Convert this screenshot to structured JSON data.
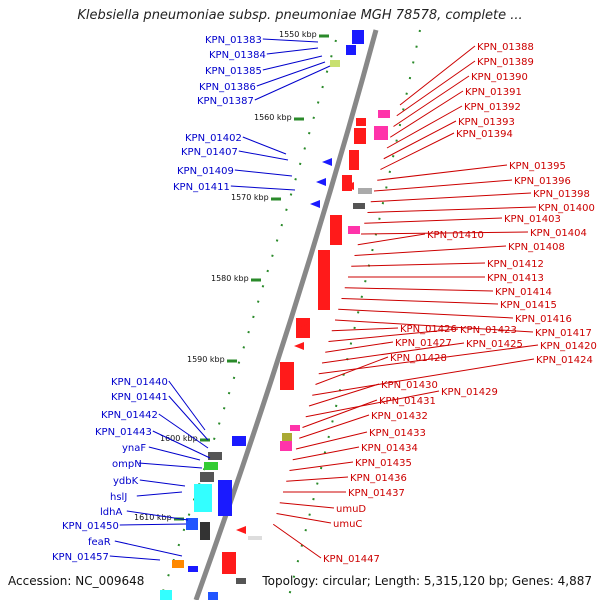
{
  "title": "Klebsiella pneumoniae subsp. pneumoniae MGH 78578, complete ...",
  "footer": {
    "accession": "Accession: NC_009648",
    "stats": "Topology: circular; Length: 5,315,120 bp; Genes: 4,887"
  },
  "colors": {
    "left_label": "#0000cc",
    "right_label": "#cc0000",
    "backbone": "#888888",
    "scale": "#2a8a2a"
  },
  "scale_labels": [
    "1550 kbp",
    "1560 kbp",
    "1570 kbp",
    "1580 kbp",
    "1590 kbp",
    "1600 kbp",
    "1610 kbp"
  ],
  "left_labels": [
    "KPN_01383",
    "KPN_01384",
    "KPN_01385",
    "KPN_01386",
    "KPN_01387",
    "KPN_01402",
    "KPN_01407",
    "KPN_01409",
    "KPN_01411",
    "KPN_01440",
    "KPN_01441",
    "KPN_01442",
    "KPN_01443",
    "ynaF",
    "ompN",
    "ydbK",
    "hslJ",
    "ldhA",
    "KPN_01450",
    "feaR",
    "KPN_01457"
  ],
  "right_labels": [
    "KPN_01388",
    "KPN_01389",
    "KPN_01390",
    "KPN_01391",
    "KPN_01392",
    "KPN_01393",
    "KPN_01394",
    "KPN_01395",
    "KPN_01396",
    "KPN_01398",
    "KPN_01400",
    "KPN_01403",
    "KPN_01404",
    "KPN_01410",
    "KPN_01408",
    "KPN_01412",
    "KPN_01413",
    "KPN_01414",
    "KPN_01415",
    "KPN_01416",
    "KPN_01417",
    "KPN_01426",
    "KPN_01423",
    "KPN_01427",
    "KPN_01425",
    "KPN_01420",
    "KPN_01428",
    "KPN_01424",
    "KPN_01430",
    "KPN_01429",
    "KPN_01431",
    "KPN_01432",
    "KPN_01433",
    "KPN_01434",
    "KPN_01435",
    "KPN_01436",
    "KPN_01437",
    "umuD",
    "umuC",
    "KPN_01447"
  ]
}
